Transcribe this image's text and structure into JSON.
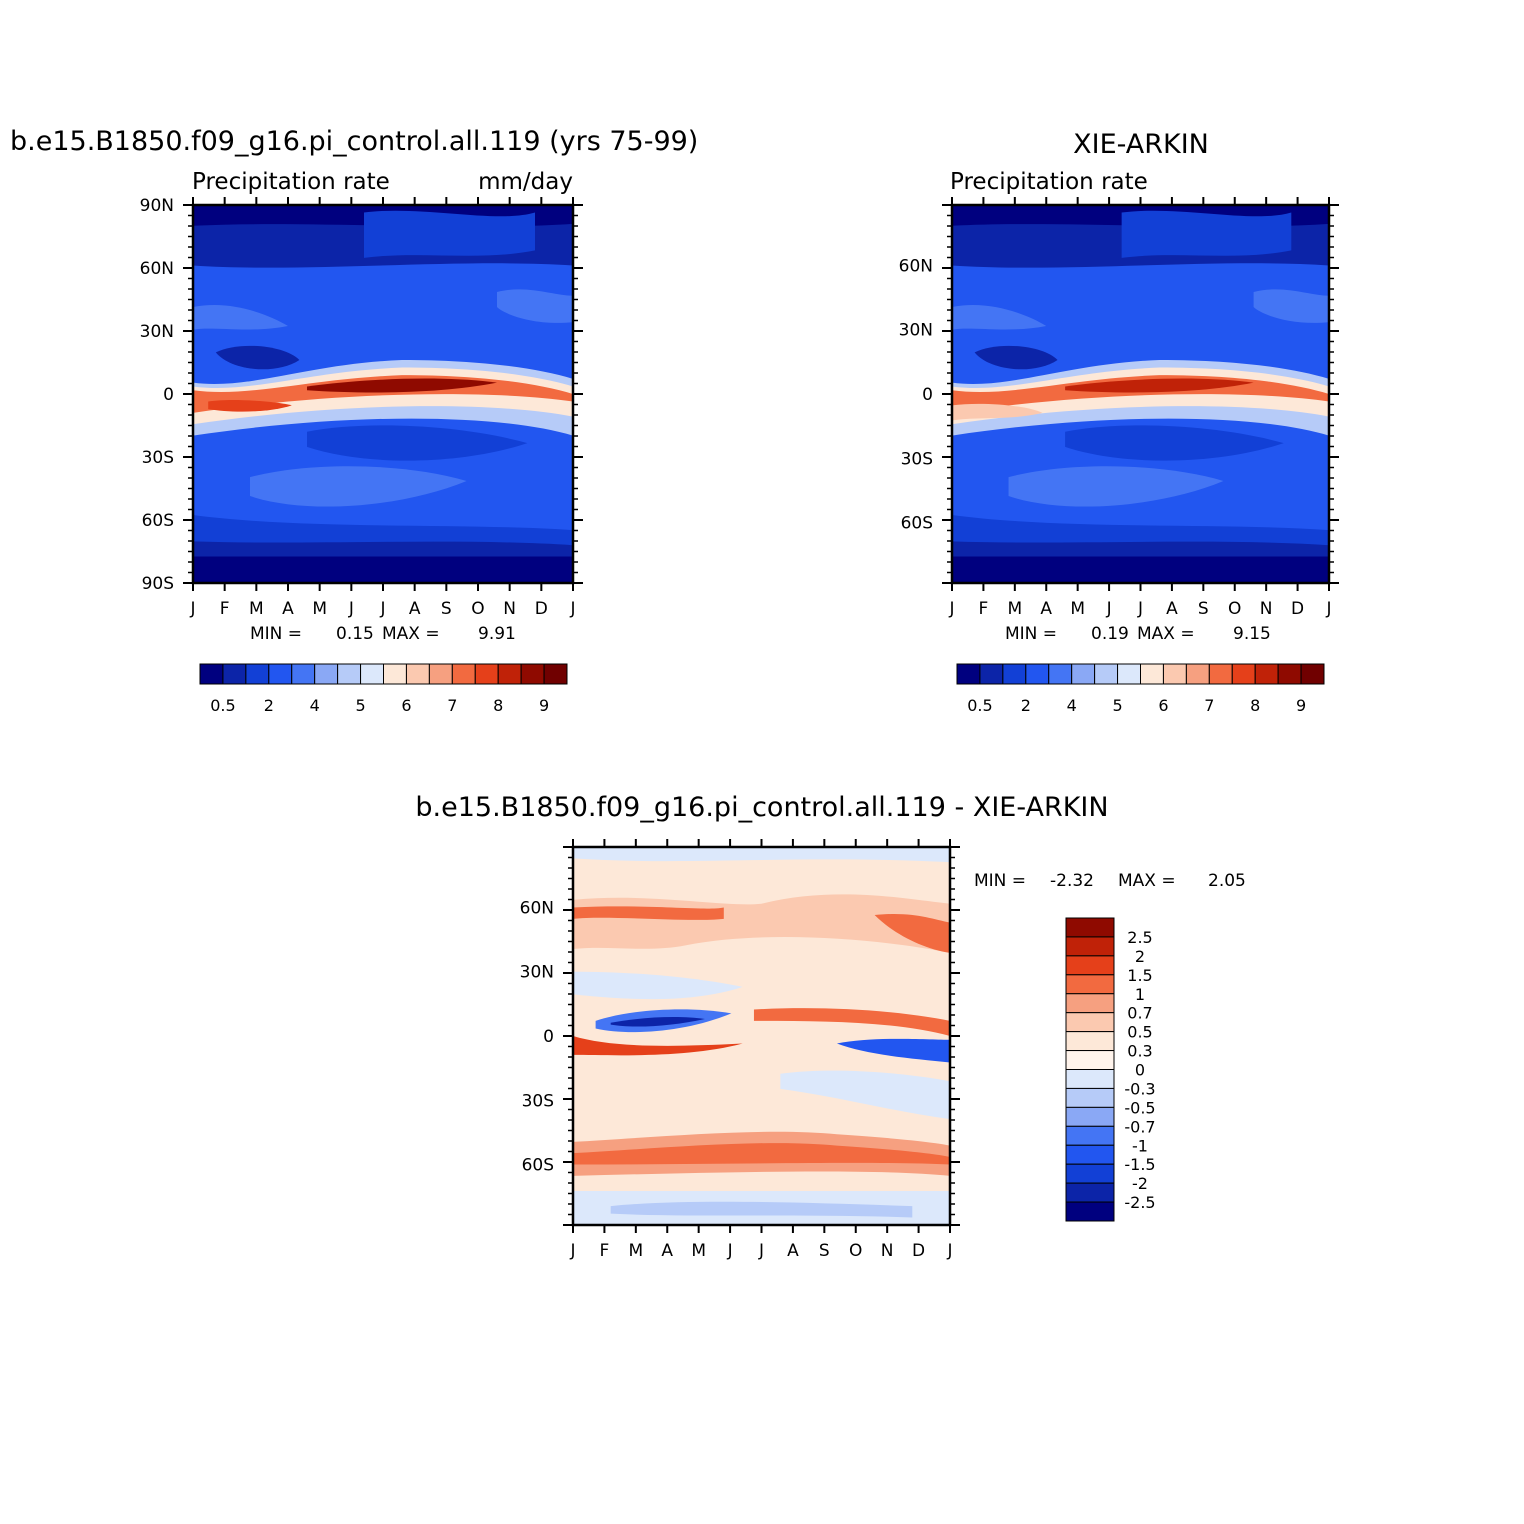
{
  "chart_data": [
    {
      "type": "heatmap",
      "title": "b.e15.B1850.f09_g16.pi_control.all.119 (yrs 75-99)",
      "left_label": "Precipitation rate",
      "right_label": "mm/day",
      "x_tick_labels": [
        "J",
        "F",
        "M",
        "A",
        "M",
        "J",
        "J",
        "A",
        "S",
        "O",
        "N",
        "D",
        "J"
      ],
      "y_tick_labels": [
        "90N",
        "60N",
        "30N",
        "0",
        "30S",
        "60S",
        "90S"
      ],
      "ylim": [
        -90,
        90
      ],
      "stats": {
        "min_label": "MIN =",
        "min": "0.15",
        "max_label": "MAX =",
        "max": "9.91"
      },
      "colorbar": {
        "levels": [
          0.5,
          1,
          2,
          3,
          4,
          4.5,
          5,
          5.5,
          6,
          6.5,
          7,
          7.5,
          8,
          8.5,
          9
        ],
        "labels": [
          "0.5",
          "2",
          "4",
          "5",
          "6",
          "7",
          "8",
          "9"
        ],
        "colors": [
          "#00007f",
          "#0c24a8",
          "#1240d6",
          "#2256f0",
          "#4475f4",
          "#8aa8f5",
          "#b6cbf8",
          "#dce8fb",
          "#fde8d8",
          "#fbc9b0",
          "#f6a080",
          "#f26a40",
          "#e5401a",
          "#c02208",
          "#8f0a00",
          "#700000"
        ]
      },
      "bands": [
        {
          "name": "arctic",
          "colors": [
            "#00007f",
            "#0c24a8"
          ]
        },
        {
          "name": "north_mid",
          "colors": [
            "#1240d6",
            "#2256f0",
            "#4475f4"
          ]
        },
        {
          "name": "itcz",
          "colors": [
            "#f26a40",
            "#c02208"
          ]
        },
        {
          "name": "south_mid",
          "colors": [
            "#2256f0",
            "#4475f4",
            "#1240d6"
          ]
        },
        {
          "name": "antarctic",
          "colors": [
            "#0c24a8",
            "#00007f"
          ]
        }
      ]
    },
    {
      "type": "heatmap",
      "title": "XIE-ARKIN",
      "left_label": "Precipitation rate",
      "x_tick_labels": [
        "J",
        "F",
        "M",
        "A",
        "M",
        "J",
        "J",
        "A",
        "S",
        "O",
        "N",
        "D",
        "J"
      ],
      "y_tick_labels": [
        "60N",
        "30N",
        "0",
        "30S",
        "60S"
      ],
      "stats": {
        "min_label": "MIN =",
        "min": "0.19",
        "max_label": "MAX =",
        "max": "9.15"
      },
      "colorbar": {
        "labels": [
          "0.5",
          "2",
          "4",
          "5",
          "6",
          "7",
          "8",
          "9"
        ],
        "colors": [
          "#00007f",
          "#0c24a8",
          "#1240d6",
          "#2256f0",
          "#4475f4",
          "#8aa8f5",
          "#b6cbf8",
          "#dce8fb",
          "#fde8d8",
          "#fbc9b0",
          "#f6a080",
          "#f26a40",
          "#e5401a",
          "#c02208",
          "#8f0a00",
          "#700000"
        ]
      }
    },
    {
      "type": "heatmap",
      "title": "b.e15.B1850.f09_g16.pi_control.all.119 - XIE-ARKIN",
      "x_tick_labels": [
        "J",
        "F",
        "M",
        "A",
        "M",
        "J",
        "J",
        "A",
        "S",
        "O",
        "N",
        "D",
        "J"
      ],
      "y_tick_labels": [
        "60N",
        "30N",
        "0",
        "30S",
        "60S"
      ],
      "stats": {
        "min_label": "MIN =",
        "min": "-2.32",
        "max_label": "MAX =",
        "max": "2.05"
      },
      "colorbar": {
        "labels": [
          "2.5",
          "2",
          "1.5",
          "1",
          "0.7",
          "0.5",
          "0.3",
          "0",
          "-0.3",
          "-0.5",
          "-0.7",
          "-1",
          "-1.5",
          "-2",
          "-2.5"
        ],
        "colors": [
          "#8f0a00",
          "#c02208",
          "#e5401a",
          "#f26a40",
          "#f6a080",
          "#fbc9b0",
          "#fde8d8",
          "#fff4ec",
          "#dce8fb",
          "#b6cbf8",
          "#8aa8f5",
          "#4475f4",
          "#2256f0",
          "#1240d6",
          "#0c24a8",
          "#00007f"
        ]
      }
    }
  ]
}
